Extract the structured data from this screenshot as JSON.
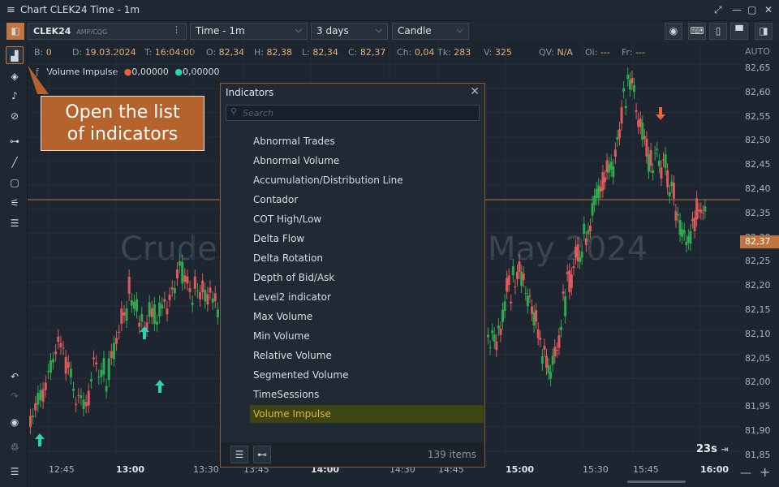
{
  "window": {
    "title": "Chart CLEK24 Time - 1m",
    "menu_icon": "≡",
    "buttons": [
      "⤢",
      "—",
      "▢",
      "✕"
    ]
  },
  "toolbar": {
    "symbol": "CLEK24",
    "exchange": "AMP/CQG",
    "timeframe": "Time - 1m",
    "period": "3 days",
    "chart_type": "Candle"
  },
  "info": [
    {
      "k": "B:",
      "v": "0"
    },
    {
      "k": "D:",
      "v": "19.03.2024"
    },
    {
      "k": "T:",
      "v": "16:04:00"
    },
    {
      "k": "O:",
      "v": "82,34"
    },
    {
      "k": "H:",
      "v": "82,38"
    },
    {
      "k": "L:",
      "v": "82,34"
    },
    {
      "k": "C:",
      "v": "82,37"
    },
    {
      "k": "Ch:",
      "v": "0,04"
    },
    {
      "k": "Tk:",
      "v": "283"
    },
    {
      "k": "V:",
      "v": "325"
    },
    {
      "k": "QV:",
      "v": "N/A"
    },
    {
      "k": "Oi:",
      "v": "---"
    },
    {
      "k": "Fr:",
      "v": "---"
    }
  ],
  "indicator_legend": {
    "name": "Volume Impulse",
    "v1": "0,00000",
    "v2": "0,00000",
    "c1": "#e8643c",
    "c2": "#2bd4b0"
  },
  "watermark": {
    "left": "Crude",
    "right": "May 2024"
  },
  "y_axis": {
    "mode": "AUTO",
    "labels": [
      "82,65",
      "82,60",
      "82,55",
      "82,50",
      "82,45",
      "82,40",
      "82,35",
      "82,30",
      "82,25",
      "82,20",
      "82,15",
      "82,10",
      "82,05",
      "82,00",
      "81,95",
      "81,90",
      "81,85"
    ],
    "current_price": "82,37"
  },
  "x_axis": [
    {
      "t": "12:45",
      "b": false
    },
    {
      "t": "13:00",
      "b": true
    },
    {
      "t": "13:30",
      "b": false
    },
    {
      "t": "13:45",
      "b": false
    },
    {
      "t": "14:00",
      "b": true
    },
    {
      "t": "14:30",
      "b": false
    },
    {
      "t": "14:45",
      "b": false
    },
    {
      "t": "15:00",
      "b": true
    },
    {
      "t": "15:30",
      "b": false
    },
    {
      "t": "15:45",
      "b": false
    },
    {
      "t": "16:00",
      "b": true
    }
  ],
  "callout": {
    "line1": "Open the list",
    "line2": "of indicators"
  },
  "indicators_panel": {
    "title": "Indicators",
    "search_placeholder": "Search",
    "items": [
      "Abnormal Trades",
      "Abnormal Volume",
      "Accumulation/Distribution Line",
      "Contador",
      "COT High/Low",
      "Delta Flow",
      "Delta Rotation",
      "Depth of Bid/Ask",
      "Level2 indicator",
      "Max Volume",
      "Min Volume",
      "Relative Volume",
      "Segmented Volume",
      "TimeSessions",
      "Volume Impulse"
    ],
    "selected": "Volume Impulse",
    "count": "139 items"
  },
  "timer": "23s",
  "colors": {
    "up": "#2fa84f",
    "down": "#e05a5a",
    "accent": "#c0743e",
    "arrow_up": "#2bd4b0",
    "arrow_down": "#e8643c"
  },
  "chart_data": {
    "type": "candlestick",
    "ylim": [
      81.85,
      82.65
    ],
    "last_close": 82.37
  }
}
